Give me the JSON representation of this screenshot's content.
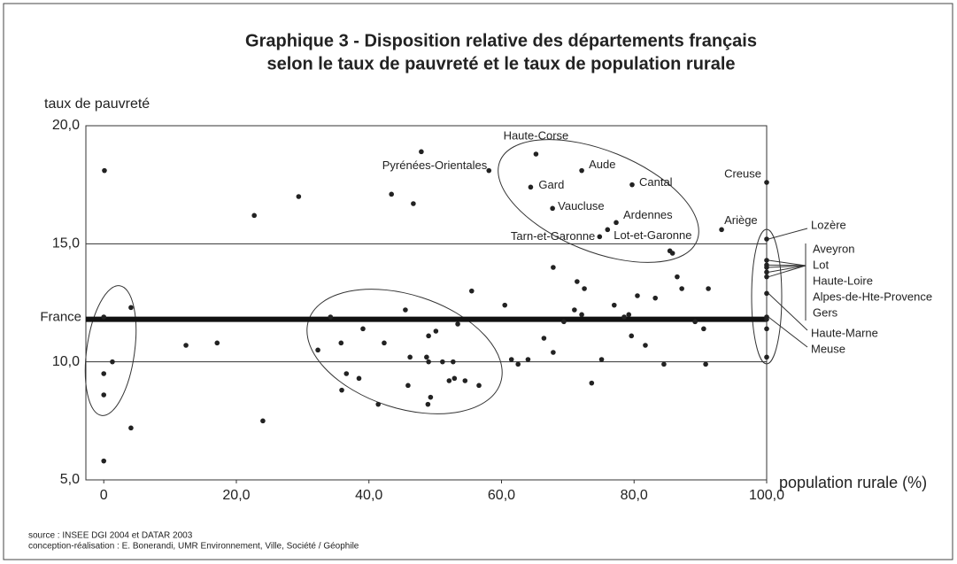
{
  "chart_data": {
    "type": "scatter",
    "title": [
      "Graphique 3 - Disposition relative des départements français",
      "selon le taux de pauvreté et le taux de population rurale"
    ],
    "y_label": "taux de pauvreté",
    "x_label": "population rurale (%)",
    "source": [
      "source : INSEE DGI 2004 et DATAR 2003",
      "conception-réalisation : E. Bonerandi, UMR Environnement, Ville, Société / Géophile"
    ],
    "reference": {
      "label": "France",
      "value": 11.8
    },
    "xlim": [
      -2.7,
      100
    ],
    "ylim": [
      5,
      20
    ],
    "xticks": [
      {
        "value": 0,
        "label": "0"
      },
      {
        "value": 20,
        "label": "20,0"
      },
      {
        "value": 40,
        "label": "40,0"
      },
      {
        "value": 60,
        "label": "60,0"
      },
      {
        "value": 80,
        "label": "80,0"
      },
      {
        "value": 100,
        "label": "100,0"
      }
    ],
    "yticks": [
      {
        "value": 5,
        "label": "5,0"
      },
      {
        "value": 10,
        "label": "10,0"
      },
      {
        "value": 15,
        "label": "15,0"
      },
      {
        "value": 20,
        "label": "20,0"
      }
    ],
    "grid": true,
    "color": "#222222",
    "labels": [
      "Haute-Corse",
      "Pyrénées-Orientales",
      "Aude",
      "Gard",
      "Cantal",
      "Vaucluse",
      "Ardennes",
      "Lot-et-Garonne",
      "Tarn-et-Garonne",
      "Creuse",
      "Ariège",
      "Lozère",
      "Aveyron",
      "Lot",
      "Haute-Loire",
      "Alpes-de-Hte-Provence",
      "Gers",
      "Haute-Marne",
      "Meuse",
      null,
      null,
      null,
      null,
      null,
      null,
      null,
      null,
      null,
      null,
      null,
      null,
      null,
      null,
      null,
      null,
      null,
      null,
      null,
      null,
      null,
      null,
      null,
      null,
      null,
      null,
      null,
      null,
      null,
      null,
      null,
      null,
      null,
      null,
      null,
      null,
      null,
      null,
      null,
      null,
      null,
      null,
      null,
      null,
      null,
      null,
      null,
      null,
      null,
      null,
      null,
      null,
      null,
      null,
      null,
      null,
      null,
      null,
      null,
      null,
      null,
      null,
      null,
      null,
      null,
      null,
      null,
      null,
      null,
      null
    ],
    "x": [
      65.2,
      58.1,
      72.1,
      64.4,
      79.7,
      67.7,
      77.3,
      76.0,
      74.8,
      100,
      93.2,
      100,
      100,
      100,
      100,
      100,
      100,
      100,
      100,
      0.1,
      0,
      4.1,
      1.3,
      0,
      0,
      4.1,
      0,
      12.4,
      17.1,
      24.0,
      22.7,
      29.4,
      43.4,
      46.7,
      47.9,
      32.3,
      34.2,
      35.8,
      36.6,
      35.9,
      38.5,
      39.1,
      41.4,
      42.3,
      45.5,
      45.9,
      46.2,
      48.7,
      49.0,
      50.1,
      49.0,
      48.9,
      49.3,
      51.1,
      52.1,
      52.7,
      52.9,
      53.4,
      54.5,
      55.5,
      56.6,
      60.5,
      61.5,
      62.5,
      64.0,
      66.4,
      67.8,
      69.4,
      67.8,
      71.4,
      72.5,
      71.0,
      72.1,
      73.6,
      75.1,
      77.0,
      78.5,
      79.2,
      79.6,
      80.5,
      81.7,
      83.2,
      84.5,
      86.5,
      87.2,
      89.2,
      90.5,
      90.8,
      91.2,
      85.4,
      85.8,
      100,
      100,
      100
    ],
    "y": [
      18.8,
      18.1,
      18.1,
      17.4,
      17.5,
      16.5,
      15.9,
      15.6,
      15.3,
      17.6,
      15.6,
      15.2,
      14.3,
      14.1,
      14.0,
      13.8,
      13.6,
      12.9,
      11.9,
      18.1,
      11.9,
      12.3,
      10.0,
      9.5,
      8.6,
      7.2,
      5.8,
      10.7,
      10.8,
      7.5,
      16.2,
      17.0,
      17.1,
      16.7,
      18.9,
      10.5,
      11.9,
      10.8,
      9.5,
      8.8,
      9.3,
      11.4,
      8.2,
      10.8,
      12.2,
      9.0,
      10.2,
      10.2,
      11.1,
      11.3,
      10.0,
      8.2,
      8.5,
      10.0,
      9.2,
      10.0,
      9.3,
      11.6,
      9.2,
      13.0,
      9.0,
      12.4,
      10.1,
      9.9,
      10.1,
      11.0,
      10.4,
      11.7,
      14.0,
      13.4,
      13.1,
      12.2,
      12.0,
      9.1,
      10.1,
      12.4,
      11.9,
      12.0,
      11.1,
      12.8,
      10.7,
      12.7,
      9.9,
      13.6,
      13.1,
      11.7,
      11.4,
      9.9,
      13.1,
      14.7,
      14.6,
      11.8,
      11.4,
      10.2
    ]
  }
}
